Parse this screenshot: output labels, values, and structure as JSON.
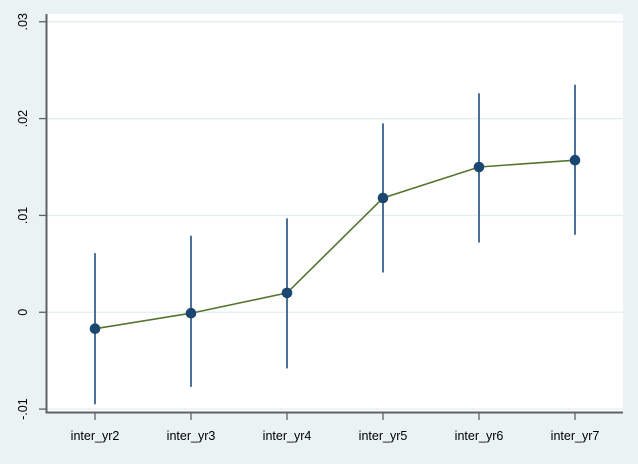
{
  "figure": {
    "background_color": "#eaf2f3",
    "plot_background_color": "#ffffff",
    "axis_color": "#606060",
    "grid_color": "#e2eef0",
    "text_color": "#000000"
  },
  "chart_data": {
    "type": "line",
    "subtype": "coefficient-plot-with-confidence-intervals",
    "title": "",
    "xlabel": "",
    "ylabel": "",
    "legend_position": "none",
    "grid": true,
    "categories": [
      "inter_yr2",
      "inter_yr3",
      "inter_yr4",
      "inter_yr5",
      "inter_yr6",
      "inter_yr7"
    ],
    "series": [
      {
        "name": "estimate",
        "values": [
          -0.0017,
          -0.0001,
          0.002,
          0.0118,
          0.015,
          0.0157
        ],
        "marker": "circle",
        "marker_color": "#1a476f",
        "line_color": "#55752f"
      },
      {
        "name": "confidence-interval",
        "lower": [
          -0.0095,
          -0.0077,
          -0.0058,
          0.0041,
          0.0072,
          0.008
        ],
        "upper": [
          0.0061,
          0.0079,
          0.0097,
          0.0195,
          0.0226,
          0.0235
        ],
        "color": "#4b7194"
      }
    ],
    "ylim": [
      -0.0103,
      0.0308
    ],
    "yticks": {
      "values": [
        -0.01,
        0,
        0.01,
        0.02,
        0.03
      ],
      "labels": [
        "-.01",
        "0",
        ".01",
        ".02",
        ".03"
      ]
    }
  }
}
